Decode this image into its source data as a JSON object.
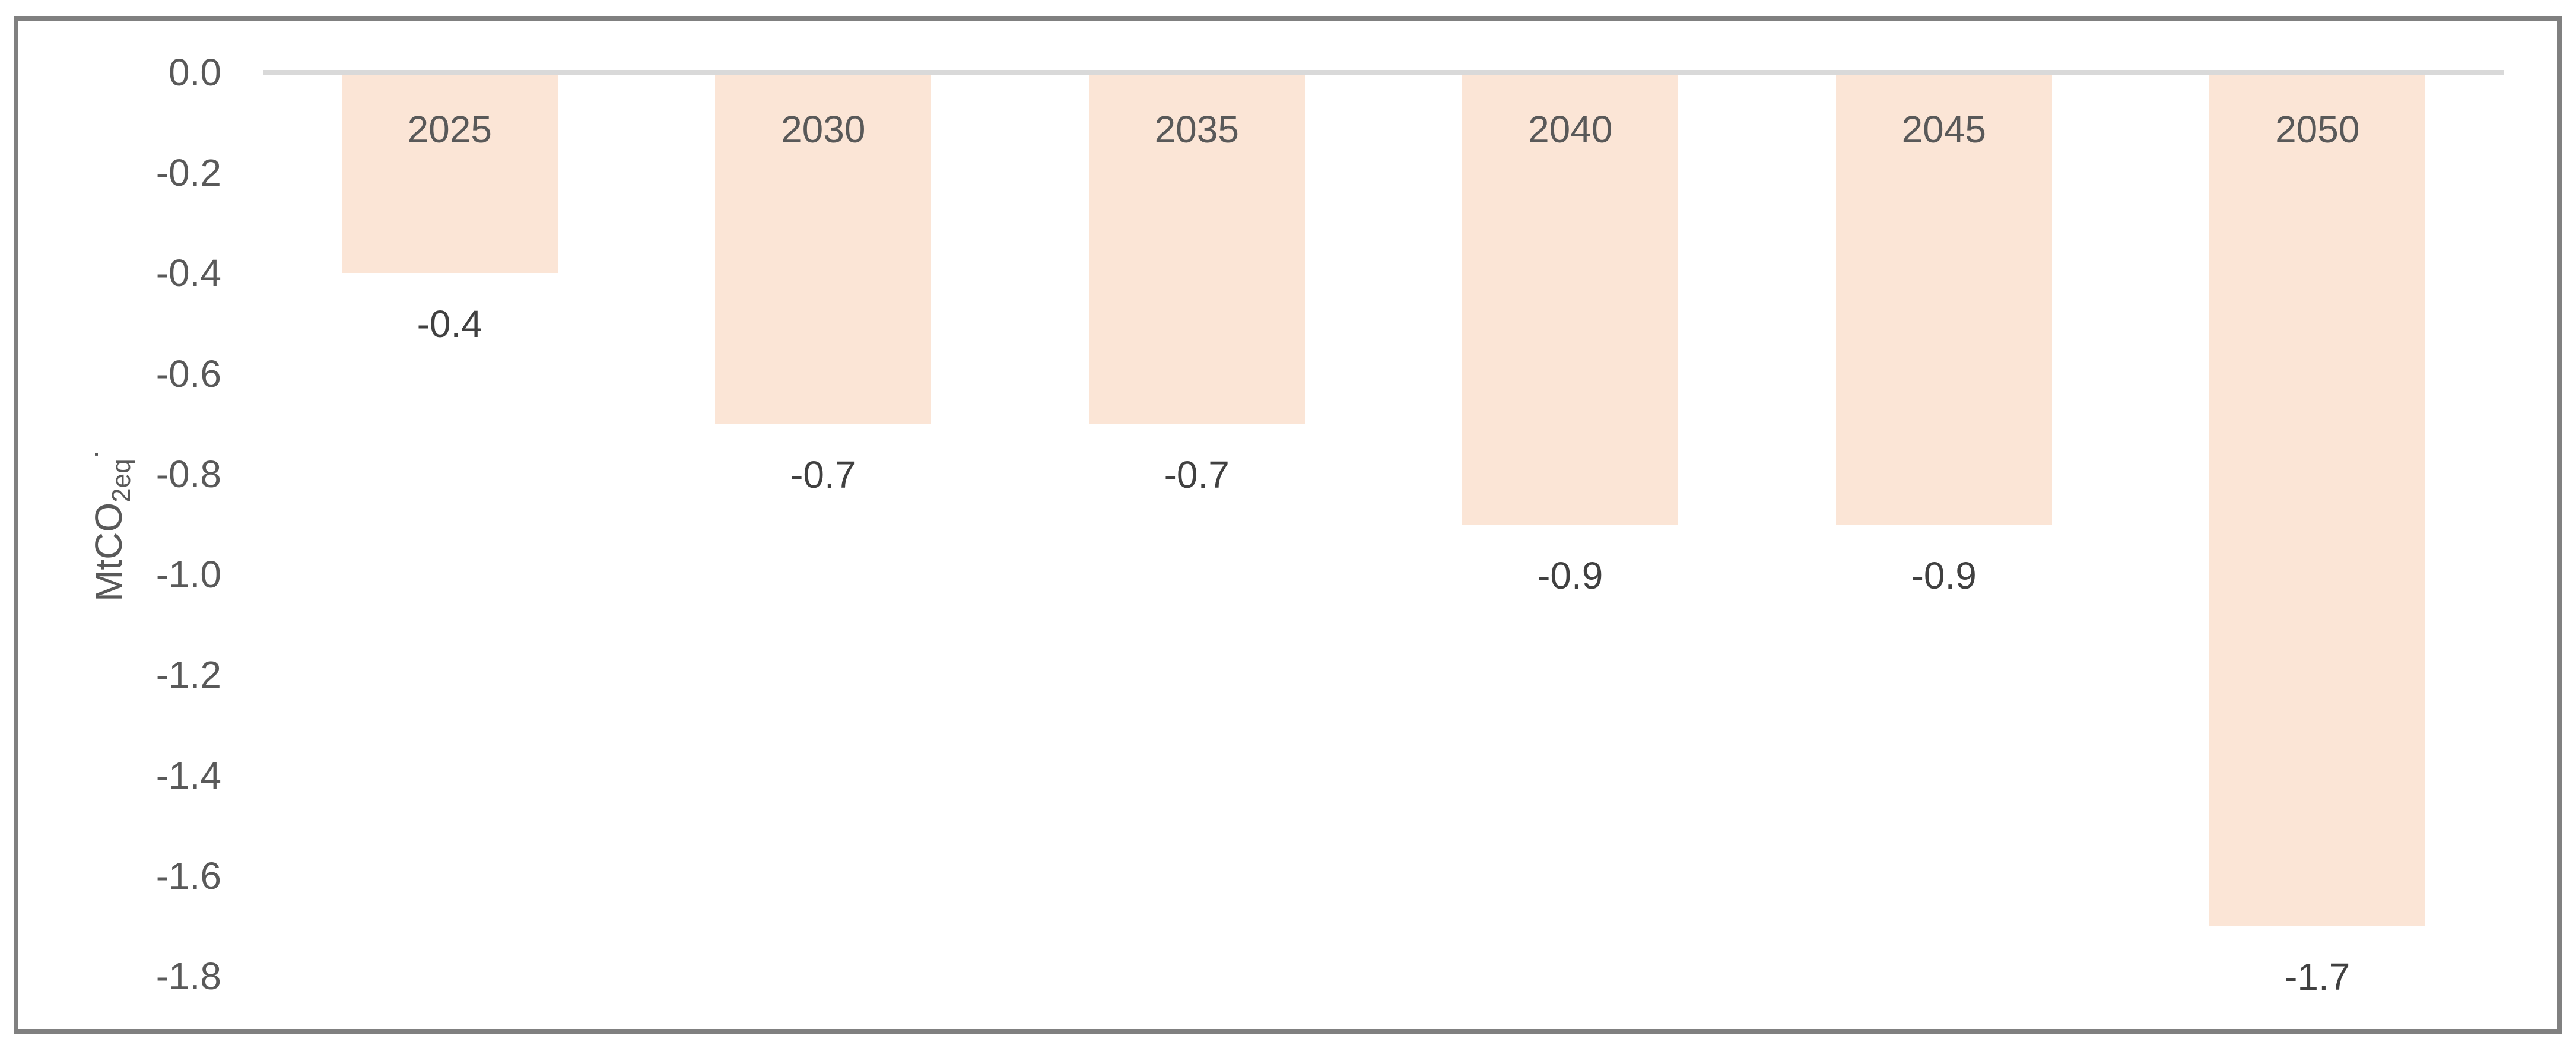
{
  "chart_data": {
    "type": "bar",
    "orientation": "vertical",
    "title": "",
    "xlabel": "",
    "ylabel": "MtCO2eq·",
    "ylabel_main": "MtCO",
    "ylabel_sub": "2eq",
    "ylabel_marker": "·",
    "categories": [
      "2025",
      "2030",
      "2035",
      "2040",
      "2045",
      "2050"
    ],
    "values": [
      -0.4,
      -0.7,
      -0.7,
      -0.9,
      -0.9,
      -1.7
    ],
    "data_labels": [
      "-0.4",
      "-0.7",
      "-0.7",
      "-0.9",
      "-0.9",
      "-1.7"
    ],
    "ylim": [
      -1.8,
      0.0
    ],
    "ytick_step": 0.2,
    "ytick_labels": [
      "0.0",
      "-0.2",
      "-0.4",
      "-0.6",
      "-0.8",
      "-1.0",
      "-1.2",
      "-1.4",
      "-1.6",
      "-1.8"
    ],
    "grid": "off",
    "legend": "none",
    "category_label_position": "inside-top-of-bar",
    "data_label_position": "outside-end-below-bar",
    "colors": {
      "bar_fill": "#FBE5D6",
      "zero_axis_line": "#D9D9D9",
      "frame_border": "#808080",
      "tick_text": "#595959",
      "category_text": "#595959",
      "data_label_text": "#404040",
      "axis_title_text": "#595959",
      "background": "#FFFFFF"
    }
  }
}
